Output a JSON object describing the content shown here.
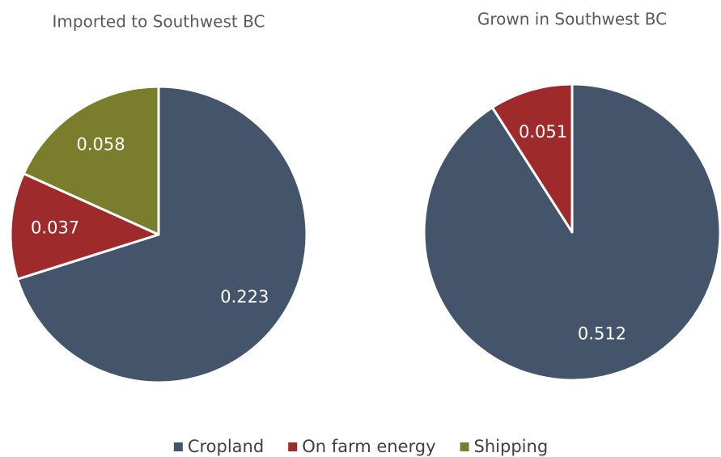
{
  "chart_data": {
    "type": "pie",
    "categories": [
      "Cropland",
      "On farm energy",
      "Shipping"
    ],
    "colors": [
      "#44546a",
      "#9e2a2b",
      "#7a7d2c"
    ],
    "pies": [
      {
        "title": "Imported to Southwest BC",
        "values": [
          0.223,
          0.037,
          0.058
        ]
      },
      {
        "title": "Grown in Southwest BC",
        "values": [
          0.512,
          0.051,
          null
        ]
      }
    ],
    "legend": "bottom"
  }
}
